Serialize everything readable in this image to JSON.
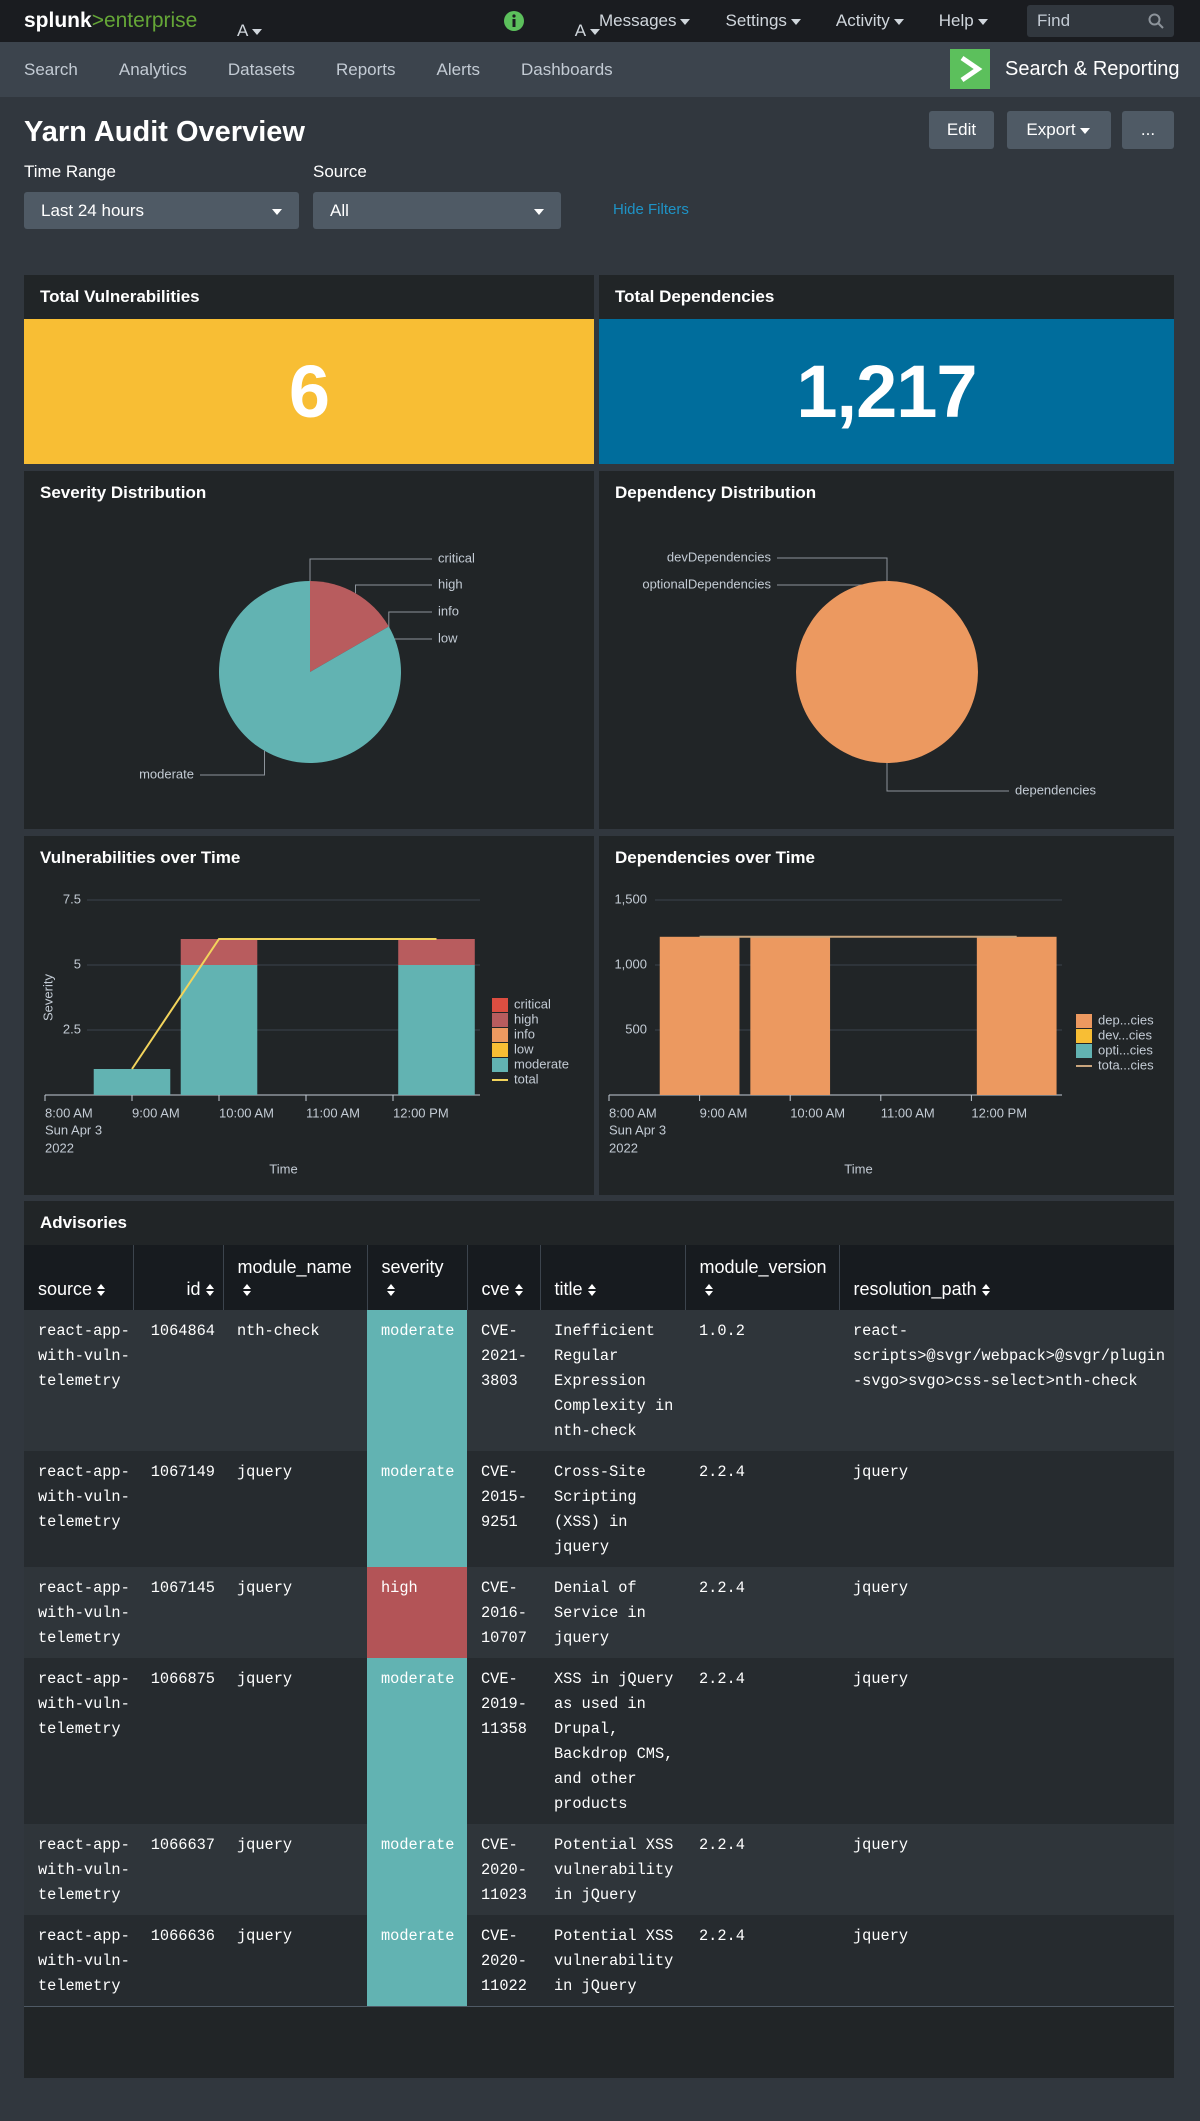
{
  "topbar": {
    "logo": "splunk",
    "logo_suffix": ">enterprise",
    "app_menu": "A",
    "user_menu": "A",
    "menus": [
      "Messages",
      "Settings",
      "Activity",
      "Help"
    ],
    "search_placeholder": "Find"
  },
  "appbar": {
    "tabs": [
      "Search",
      "Analytics",
      "Datasets",
      "Reports",
      "Alerts",
      "Dashboards"
    ],
    "app_name": "Search & Reporting"
  },
  "header": {
    "title": "Yarn Audit Overview",
    "buttons": [
      "Edit",
      "Export",
      "..."
    ]
  },
  "filters": {
    "inputs": [
      {
        "label": "Time Range",
        "value": "Last 24 hours"
      },
      {
        "label": "Source",
        "value": "All"
      }
    ],
    "toggle": "Hide Filters"
  },
  "singles": [
    {
      "title": "Total Vulnerabilities",
      "value": 6,
      "color": "#f8be34"
    },
    {
      "title": "Total Dependencies",
      "value": 1217,
      "value_label": "1,217",
      "color": "#006d9c"
    }
  ],
  "chart_data": [
    {
      "type": "pie",
      "title": "Severity Distribution",
      "categories": [
        "critical",
        "high",
        "info",
        "low",
        "moderate"
      ],
      "values": [
        0,
        1,
        0,
        0,
        5
      ],
      "colors": [
        "#dc4e41",
        "#b85c5e",
        "#ec9960",
        "#f8be34",
        "#62b3b2"
      ]
    },
    {
      "type": "pie",
      "title": "Dependency Distribution",
      "categories": [
        "devDependencies",
        "optionalDependencies",
        "dependencies"
      ],
      "values": [
        0,
        0,
        1217
      ],
      "colors": [
        "#f8be34",
        "#62b3b2",
        "#ec9960"
      ]
    },
    {
      "type": "column",
      "title": "Vulnerabilities over Time",
      "stacked": true,
      "x": [
        9,
        10,
        12.5
      ],
      "xlim": [
        8,
        13
      ],
      "xticks": [
        {
          "value": 8,
          "label": "8:00 AM"
        },
        {
          "value": 9,
          "label": "9:00 AM"
        },
        {
          "value": 10,
          "label": "10:00 AM"
        },
        {
          "value": 11,
          "label": "11:00 AM"
        },
        {
          "value": 12,
          "label": "12:00 PM"
        }
      ],
      "x_sublabels": [
        "Sun Apr 3",
        "2022"
      ],
      "xlabel": "Time",
      "ylabel": "Severity",
      "ylim": [
        0,
        7.5
      ],
      "yticks": [
        2.5,
        5,
        7.5
      ],
      "grid": true,
      "series": [
        {
          "name": "critical",
          "color": "#dc4e41",
          "values": [
            0,
            0,
            0
          ]
        },
        {
          "name": "high",
          "color": "#b85c5e",
          "values": [
            0,
            1,
            1
          ]
        },
        {
          "name": "info",
          "color": "#ec9960",
          "values": [
            0,
            0,
            0
          ]
        },
        {
          "name": "low",
          "color": "#f8be34",
          "values": [
            0,
            0,
            0
          ]
        },
        {
          "name": "moderate",
          "color": "#62b3b2",
          "values": [
            1,
            5,
            5
          ]
        },
        {
          "name": "total",
          "color": "#f2d45c",
          "type": "line",
          "values": [
            1,
            6,
            6
          ]
        }
      ]
    },
    {
      "type": "column",
      "title": "Dependencies over Time",
      "stacked": true,
      "x": [
        9,
        10,
        12.5
      ],
      "xlim": [
        8,
        13
      ],
      "xticks": [
        {
          "value": 8,
          "label": "8:00 AM"
        },
        {
          "value": 9,
          "label": "9:00 AM"
        },
        {
          "value": 10,
          "label": "10:00 AM"
        },
        {
          "value": 11,
          "label": "11:00 AM"
        },
        {
          "value": 12,
          "label": "12:00 PM"
        }
      ],
      "x_sublabels": [
        "Sun Apr 3",
        "2022"
      ],
      "xlabel": "Time",
      "ylim": [
        0,
        1500
      ],
      "yticks": [
        500,
        {
          "value": 1000,
          "label": "1,000"
        },
        {
          "value": 1500,
          "label": "1,500"
        }
      ],
      "grid": true,
      "series": [
        {
          "name": "dep...cies",
          "color": "#ec9960",
          "values": [
            1217,
            1217,
            1217
          ]
        },
        {
          "name": "dev...cies",
          "color": "#f8be34",
          "values": [
            0,
            0,
            0
          ]
        },
        {
          "name": "opti...cies",
          "color": "#62b3b2",
          "values": [
            0,
            0,
            0
          ]
        },
        {
          "name": "tota...cies",
          "color": "#c9a57d",
          "type": "line",
          "values": [
            1217,
            1217,
            1217
          ]
        }
      ]
    }
  ],
  "table": {
    "title": "Advisories",
    "columns": [
      "source",
      "id",
      "module_name",
      "severity",
      "cve",
      "title",
      "module_version",
      "resolution_path"
    ],
    "severity_colors": {
      "moderate": "#62b3b2",
      "high": "#b35457"
    },
    "rows": [
      [
        "react-app-with-vuln-telemetry",
        1064864,
        "nth-check",
        "moderate",
        "CVE-2021-3803",
        "Inefficient Regular Expression Complexity in nth-check",
        "1.0.2",
        "react-scripts>@svgr/webpack>@svgr/plugin-svgo>svgo>css-select>nth-check"
      ],
      [
        "react-app-with-vuln-telemetry",
        1067149,
        "jquery",
        "moderate",
        "CVE-2015-9251",
        "Cross-Site Scripting (XSS) in jquery",
        "2.2.4",
        "jquery"
      ],
      [
        "react-app-with-vuln-telemetry",
        1067145,
        "jquery",
        "high",
        "CVE-2016-10707",
        "Denial of Service in jquery",
        "2.2.4",
        "jquery"
      ],
      [
        "react-app-with-vuln-telemetry",
        1066875,
        "jquery",
        "moderate",
        "CVE-2019-11358",
        "XSS in jQuery as used in Drupal, Backdrop CMS, and other products",
        "2.2.4",
        "jquery"
      ],
      [
        "react-app-with-vuln-telemetry",
        1066637,
        "jquery",
        "moderate",
        "CVE-2020-11023",
        "Potential XSS vulnerability in jQuery",
        "2.2.4",
        "jquery"
      ],
      [
        "react-app-with-vuln-telemetry",
        1066636,
        "jquery",
        "moderate",
        "CVE-2020-11022",
        "Potential XSS vulnerability in jQuery",
        "2.2.4",
        "jquery"
      ]
    ]
  }
}
